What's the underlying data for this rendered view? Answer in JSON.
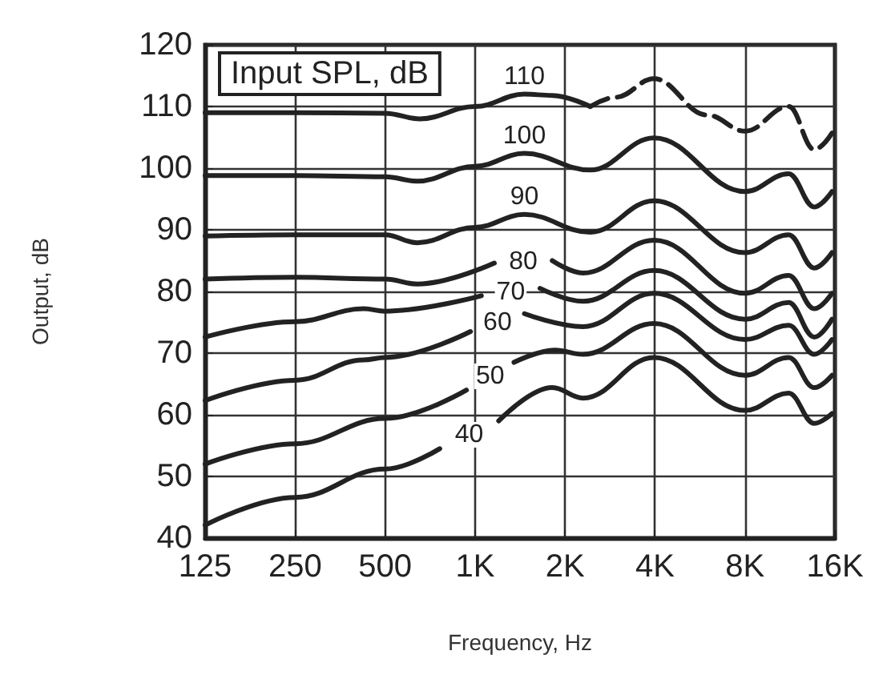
{
  "chart_data": {
    "type": "line",
    "legend_title": "Input SPL, dB",
    "xlabel": "Frequency, Hz",
    "ylabel": "Output, dB",
    "log": "x",
    "xlim": [
      125,
      16000
    ],
    "xticks": [
      125,
      250,
      500,
      {
        "value": 1000,
        "label": "1K"
      },
      {
        "value": 2000,
        "label": "2K"
      },
      {
        "value": 4000,
        "label": "4K"
      },
      {
        "value": 8000,
        "label": "8K"
      },
      {
        "value": 16000,
        "label": "16K"
      }
    ],
    "ylim": [
      40,
      120
    ],
    "yticks": [
      40,
      50,
      60,
      70,
      80,
      90,
      100,
      110,
      120
    ],
    "grid": true,
    "legend": false,
    "marker": "none",
    "line_style": "solid",
    "series": [
      {
        "name": "110",
        "color": "#222222",
        "x": [
          125,
          250,
          500,
          653,
          1000,
          1463,
          1813,
          2430
        ],
        "values": [
          109,
          109,
          108.9,
          108,
          110,
          112,
          111.8,
          110
        ]
      },
      {
        "color": "#222222",
        "line_style": "dashed",
        "x": [
          2430,
          2960,
          3970,
          5990,
          8010,
          11200,
          13660,
          15650
        ],
        "values": [
          110,
          111.5,
          114.5,
          108.6,
          106,
          110,
          103,
          105.7
        ]
      },
      {
        "name": "100",
        "color": "#222222",
        "x": [
          125,
          250,
          500,
          641,
          1000,
          1463,
          2430,
          3970,
          8010,
          11200,
          13660,
          15650
        ],
        "values": [
          98.8,
          98.8,
          98.6,
          97.9,
          100.3,
          102.4,
          99.7,
          104.9,
          96.2,
          99.1,
          93.7,
          96.2
        ]
      },
      {
        "name": "90",
        "color": "#222222",
        "x": [
          125,
          250,
          500,
          641,
          1000,
          1463,
          2430,
          3970,
          8010,
          11200,
          13660,
          15650
        ],
        "values": [
          89,
          89.2,
          89.2,
          87.9,
          90.4,
          92.5,
          89.6,
          94.7,
          86.3,
          89.2,
          83.8,
          86.3
        ]
      },
      {
        "name": "80",
        "color": "#222222",
        "x": [
          125,
          250,
          500,
          641,
          1160,
          1400,
          1813,
          2300,
          3970,
          8010,
          11200,
          13660,
          15650
        ],
        "values": [
          82,
          82.3,
          82,
          81.2,
          84.6,
          null,
          85,
          83,
          88.3,
          79.7,
          82.6,
          77.2,
          79.7
        ]
      },
      {
        "name": "70",
        "color": "#222222",
        "x": [
          125,
          250,
          424,
          500,
          1050,
          1350,
          1650,
          2300,
          3970,
          8010,
          11200,
          13660,
          15650
        ],
        "values": [
          72.6,
          75.1,
          77.2,
          76.8,
          79.3,
          null,
          80.5,
          78.4,
          83.4,
          75.5,
          78.2,
          72.6,
          75.5
        ]
      },
      {
        "name": "60",
        "color": "#222222",
        "x": [
          125,
          250,
          424,
          500,
          966,
          1200,
          1463,
          2300,
          3970,
          8010,
          11200,
          13660,
          15650
        ],
        "values": [
          62.3,
          65.6,
          68.9,
          69.3,
          73.5,
          null,
          76.4,
          74.3,
          79.7,
          72.2,
          74.5,
          69.8,
          72.2
        ]
      },
      {
        "name": "50",
        "color": "#222222",
        "x": [
          125,
          250,
          500,
          936,
          1130,
          1350,
          1850,
          2300,
          3970,
          8010,
          11200,
          13660,
          15650
        ],
        "values": [
          52,
          55.3,
          59.4,
          64,
          null,
          68.5,
          70.5,
          69.8,
          74.8,
          66.4,
          69.3,
          64.4,
          66.4
        ]
      },
      {
        "name": "40",
        "color": "#222222",
        "x": [
          125,
          250,
          500,
          762,
          950,
          1200,
          1813,
          2300,
          3970,
          8010,
          11200,
          13660,
          15650
        ],
        "values": [
          42.1,
          46.6,
          51.2,
          54.5,
          null,
          59,
          64.4,
          62.7,
          69.3,
          60.7,
          63.5,
          58.6,
          60.2
        ]
      }
    ]
  }
}
